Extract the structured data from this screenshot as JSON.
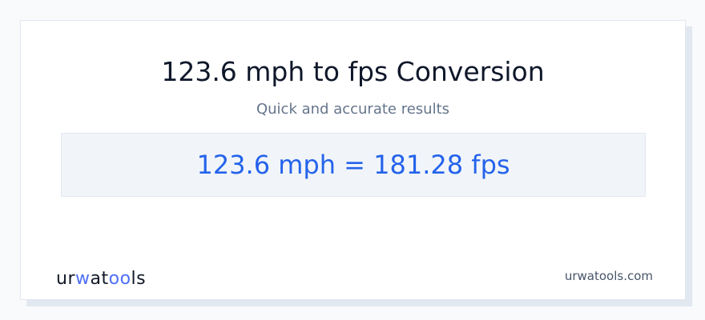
{
  "title": "123.6 mph to fps Conversion",
  "subtitle": "Quick and accurate results",
  "result": "123.6 mph = 181.28 fps",
  "logo": {
    "part1": "ur",
    "part2": "w",
    "part3": "at",
    "part4": "oo",
    "part5": "ls"
  },
  "site": "urwatools.com",
  "colors": {
    "accent": "#2563eb",
    "logo_accent": "#4f6ef7",
    "background": "#f8fafc"
  }
}
